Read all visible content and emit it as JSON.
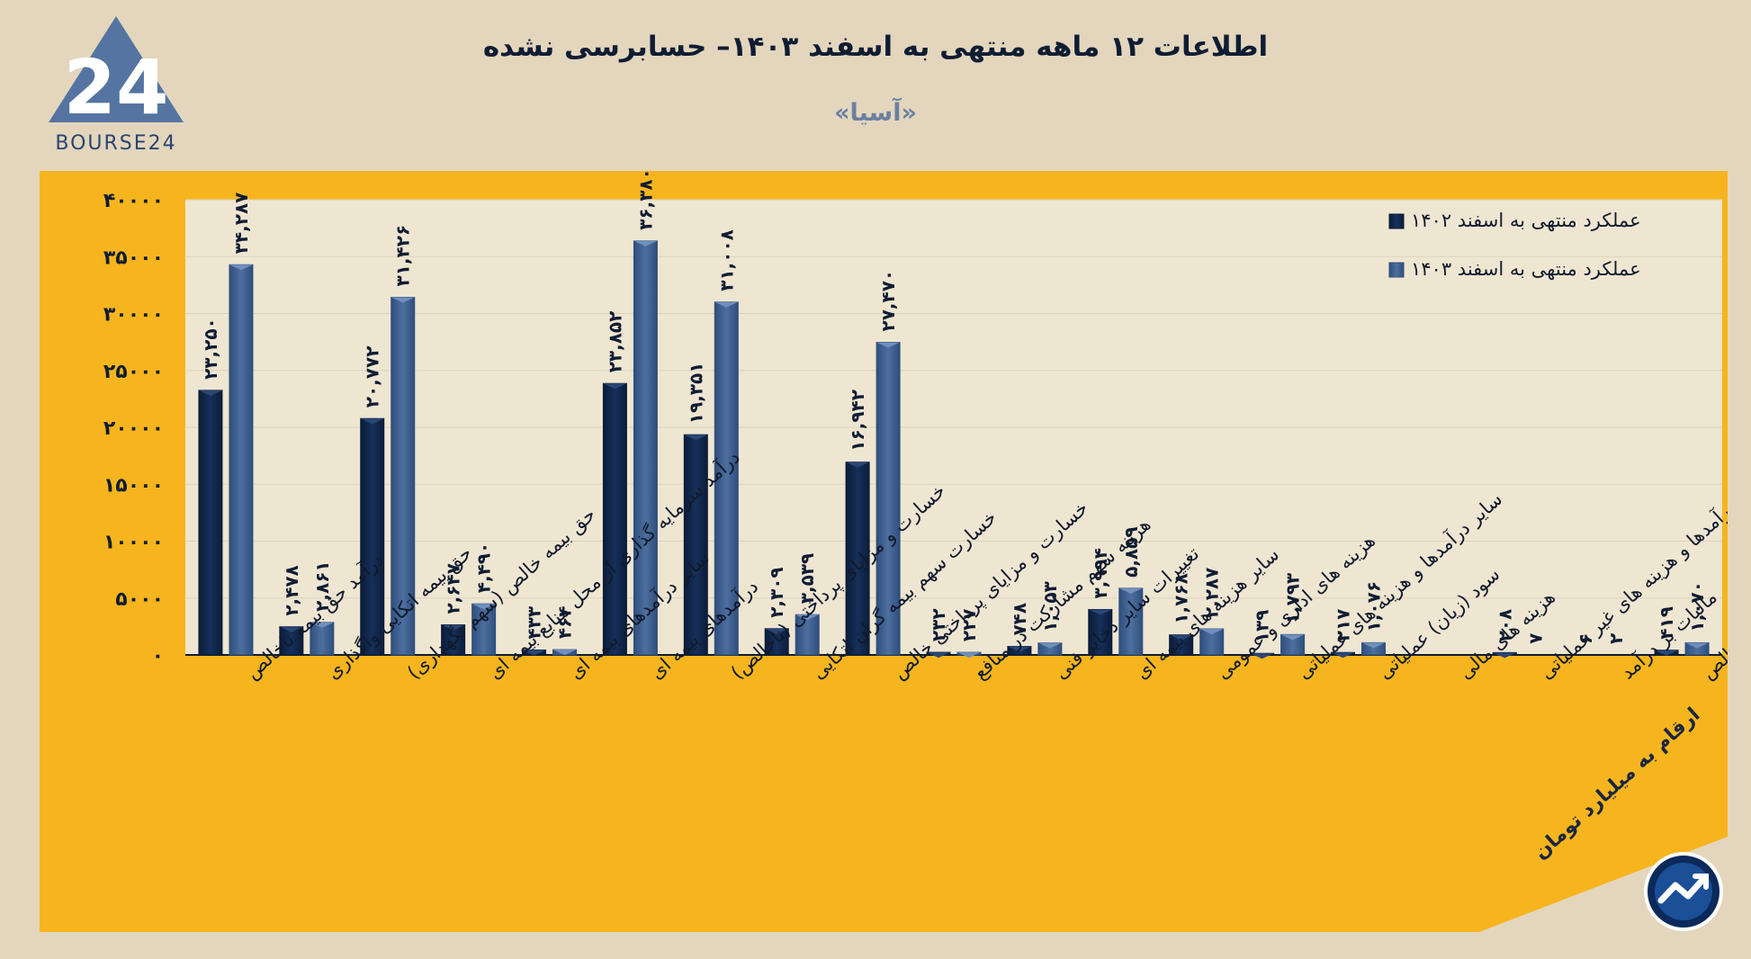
{
  "title": "اطلاعات ۱۲ ماهه منتهی به اسفند ۱۴۰۳– حسابرسی نشده",
  "subtitle": "«آسیا»",
  "logo_text": "BOURSE24",
  "logo_mark": "24",
  "unit_note": "ارقام به میلیارد تومان",
  "colors": {
    "series_1402": "#16305a",
    "series_1403": "#4d6f9f",
    "panel": "#f6b51e",
    "plot_bg": "#efe6d2",
    "background": "#e3d6bd"
  },
  "chart_data": {
    "type": "bar",
    "ylim": [
      0,
      40000
    ],
    "yticks": [
      "۰",
      "۵۰۰۰",
      "۱۰۰۰۰",
      "۱۵۰۰۰",
      "۲۰۰۰۰",
      "۲۵۰۰۰",
      "۳۰۰۰۰",
      "۳۵۰۰۰",
      "۴۰۰۰۰"
    ],
    "legend_position": "top-right",
    "categories": [
      "درآمد حق بیمه ناخالص",
      "حق بیمه اتکایی واگذاری",
      "حق بیمه خالص (سهم نگهداری)",
      "درآمد سرمایه گذاری از محل منابع بیمه ای",
      "سایر درآمدهای بیمه ای",
      "درآمدهای بیمه ای",
      "خسارت و مزایای پرداختی (ناخالص)",
      "خسارت سهم بیمه گران اتکایی",
      "خسارت و مزایای پرداختی خالص",
      "هزینه سهم مشارکت در منافع",
      "تغییرات سایر ذخایر فنی",
      "سایر هزینه های بیمه ای",
      "هزینه های اداری و عمومی",
      "سایر درآمدها و هزینه های عملیاتی",
      "سود (زیان) عملیاتی",
      "هزینه های مالی",
      "سایر درآمدها و هزینه های غیر عملیاتی",
      "مالیات بر درآمد",
      "سود (زیان) خالص"
    ],
    "series": [
      {
        "name": "عملکرد منتهی به اسفند ۱۴۰۲",
        "values": [
          23250,
          2478,
          20772,
          2647,
          433,
          23852,
          19351,
          2309,
          16942,
          232,
          748,
          3994,
          1768,
          139,
          217,
          0,
          208,
          6,
          419
        ],
        "labels": [
          "۲۳,۲۵۰",
          "۲,۴۷۸",
          "۲۰,۷۷۲",
          "۲,۶۴۷",
          "۴۳۳",
          "۲۳,۸۵۲",
          "۱۹,۳۵۱",
          "۲,۳۰۹",
          "۱۶,۹۴۲",
          "۲۳۲",
          "۷۴۸",
          "۳,۹۹۴",
          "۱,۷۶۸",
          "۱۳۹",
          "۲۱۷",
          "",
          "۲۰۸",
          "۶",
          "۴۱۹"
        ]
      },
      {
        "name": "عملکرد منتهی به اسفند ۱۴۰۳",
        "values": [
          34287,
          2861,
          31426,
          4490,
          464,
          36380,
          31008,
          3539,
          27470,
          227,
          1053,
          5859,
          2287,
          1793,
          1076,
          0,
          7,
          2,
          1070
        ],
        "labels": [
          "۳۴,۲۸۷",
          "۲,۸۶۱",
          "۳۱,۴۲۶",
          "۴,۴۹۰",
          "۴۶۴",
          "۳۶,۳۸۰",
          "۳۱,۰۰۸",
          "۳,۵۳۹",
          "۲۷,۴۷۰",
          "۲۲۷",
          "۱,۰۵۳",
          "۵,۸۵۹",
          "۲,۲۸۷",
          "۱,۷۹۳",
          "۱,۰۷۶",
          "",
          "۷",
          "۲",
          "۱,۰۷۰"
        ]
      }
    ]
  }
}
